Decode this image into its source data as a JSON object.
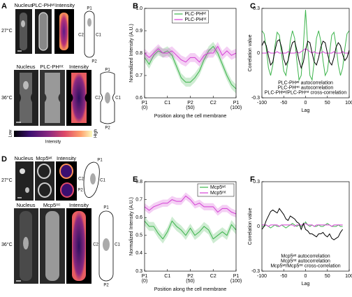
{
  "panel_a": {
    "label": "A",
    "rows": [
      {
        "temperature": "27°C",
        "headers": [
          "Nucleus",
          "PLC-PHʷᵗ",
          "Intensity"
        ],
        "diagram": [
          "P1",
          "C2",
          "C1",
          "P2"
        ]
      },
      {
        "temperature": "36°C",
        "headers": [
          "Nucleus",
          "PLC-PHᵐᵗ",
          "Intensity"
        ],
        "diagram": [
          "P1",
          "C2",
          "C1",
          "P2"
        ]
      }
    ],
    "colorbar": {
      "low": "Low",
      "high": "High",
      "label": "Intensity"
    }
  },
  "panel_d": {
    "label": "D",
    "rows": [
      {
        "temperature": "27°C",
        "headers": [
          "Nucleus",
          "Mcp5ʷᵗ",
          "Intensity"
        ],
        "diagram": [
          "P1",
          "C2",
          "C1",
          "P2"
        ]
      },
      {
        "temperature": "36°C",
        "headers": [
          "Nucleus",
          "Mcp5ᵐᵗ",
          "Intensity"
        ],
        "diagram": [
          "P1",
          "C2",
          "C1",
          "P2"
        ]
      }
    ]
  },
  "chart_data": [
    {
      "type": "line",
      "panel": "B",
      "xlabel": "Position along the cell membrane",
      "ylabel": "Normalized Intensity (A.U.)",
      "x": [
        0,
        5,
        10,
        15,
        20,
        25,
        30,
        35,
        40,
        45,
        50,
        55,
        60,
        65,
        70,
        75,
        80,
        85,
        90,
        95,
        100
      ],
      "xlim": [
        0,
        100
      ],
      "xticks": [
        {
          "value": 0,
          "label": "P1"
        },
        {
          "value": 25,
          "label": "C1"
        },
        {
          "value": 50,
          "label": "P2"
        },
        {
          "value": 75,
          "label": "C2"
        },
        {
          "value": 100,
          "label": "P1"
        }
      ],
      "xtick_notes": [
        "(0)",
        null,
        "(50)",
        null,
        "(100)"
      ],
      "ylim": [
        0.6,
        1.0
      ],
      "yticks": [
        0.6,
        0.7,
        0.8,
        0.9,
        {
          "value": 1.0,
          "label": "1.0"
        }
      ],
      "legend": "upper center",
      "legend_swatches": true,
      "series": [
        {
          "name": "PLC-PHʷᵗ",
          "color": "#3cb44b",
          "values": [
            0.78,
            0.75,
            0.79,
            0.81,
            0.8,
            0.81,
            0.79,
            0.74,
            0.69,
            0.67,
            0.67,
            0.69,
            0.72,
            0.77,
            0.81,
            0.83,
            0.8,
            0.75,
            0.7,
            0.66,
            0.64
          ],
          "errors": [
            0.02,
            0.02,
            0.02,
            0.02,
            0.02,
            0.02,
            0.02,
            0.02,
            0.02,
            0.02,
            0.02,
            0.02,
            0.02,
            0.02,
            0.02,
            0.02,
            0.02,
            0.02,
            0.02,
            0.02,
            0.02
          ]
        },
        {
          "name": "PLC-PHᵐᵗ",
          "color": "#d43fd4",
          "values": [
            0.8,
            0.78,
            0.8,
            0.82,
            0.8,
            0.8,
            0.81,
            0.79,
            0.77,
            0.76,
            0.78,
            0.78,
            0.76,
            0.79,
            0.8,
            0.8,
            0.83,
            0.79,
            0.81,
            0.79,
            0.8
          ],
          "errors": [
            0.02,
            0.02,
            0.02,
            0.02,
            0.02,
            0.02,
            0.02,
            0.02,
            0.02,
            0.02,
            0.02,
            0.02,
            0.02,
            0.02,
            0.02,
            0.02,
            0.02,
            0.02,
            0.02,
            0.02,
            0.02
          ]
        }
      ]
    },
    {
      "type": "line",
      "panel": "C",
      "xlabel": "Lag",
      "ylabel": "Correlation value",
      "x": [
        -100,
        -95,
        -90,
        -85,
        -80,
        -75,
        -70,
        -65,
        -60,
        -55,
        -50,
        -45,
        -40,
        -35,
        -30,
        -25,
        -20,
        -15,
        -10,
        -5,
        0,
        5,
        10,
        15,
        20,
        25,
        30,
        35,
        40,
        45,
        50,
        55,
        60,
        65,
        70,
        75,
        80,
        85,
        90,
        95,
        100
      ],
      "xlim": [
        -100,
        100
      ],
      "xticks": [
        -100,
        -50,
        0,
        50,
        100
      ],
      "ylim": [
        -0.3,
        0.3
      ],
      "yticks": [
        -0.3,
        0,
        0.3
      ],
      "legend": "lower center",
      "legend_swatches": false,
      "series": [
        {
          "name": "PLC-PHʷᵗ autocorrelation",
          "color": "#3cb44b",
          "values": [
            0.15,
            0.13,
            0.03,
            -0.1,
            -0.15,
            -0.08,
            0.05,
            0.14,
            0.12,
            0,
            -0.12,
            -0.15,
            -0.05,
            0.08,
            0.15,
            0.1,
            -0.05,
            -0.18,
            -0.15,
            0.05,
            0.29,
            0.05,
            -0.15,
            -0.18,
            -0.05,
            0.1,
            0.15,
            0.08,
            -0.05,
            -0.15,
            -0.12,
            0,
            0.12,
            0.14,
            0.05,
            -0.08,
            -0.15,
            -0.1,
            0.03,
            0.13,
            0.15
          ]
        },
        {
          "name": "PLC-PHᵐᵗ autocorrelation",
          "color": "#d43fd4",
          "values": [
            0,
            0,
            0,
            0.01,
            0,
            0,
            0,
            0.01,
            0,
            0,
            0,
            0,
            0.01,
            0,
            0,
            0,
            0.01,
            0,
            0.01,
            0.02,
            0.03,
            0.02,
            0.01,
            0,
            0.01,
            0,
            0,
            0,
            0.01,
            0,
            0,
            0,
            0,
            0.01,
            0,
            0,
            0,
            0.01,
            0,
            0,
            0
          ]
        },
        {
          "name": "PLC-PHʷᵗ/PLC-PHᵐᵗ cross-correlation",
          "color": "#000000",
          "values": [
            0.05,
            0.08,
            0.05,
            -0.02,
            -0.08,
            -0.06,
            0.02,
            0.08,
            0.09,
            0.04,
            -0.04,
            -0.08,
            -0.05,
            0.02,
            0.07,
            0.08,
            0.02,
            -0.05,
            -0.1,
            -0.06,
            0.02,
            0.08,
            0.07,
            0,
            -0.06,
            -0.08,
            -0.03,
            0.04,
            0.08,
            0.07,
            0,
            -0.06,
            -0.08,
            -0.03,
            0.04,
            0.07,
            0.05,
            -0.01,
            -0.05,
            -0.03,
            0.02
          ]
        }
      ]
    },
    {
      "type": "line",
      "panel": "E",
      "xlabel": "Position along the cell membrane",
      "ylabel": "Normalized Intensity (A.U.)",
      "x": [
        0,
        5,
        10,
        15,
        20,
        25,
        30,
        35,
        40,
        45,
        50,
        55,
        60,
        65,
        70,
        75,
        80,
        85,
        90,
        95,
        100
      ],
      "xlim": [
        0,
        100
      ],
      "xticks": [
        {
          "value": 0,
          "label": "P1"
        },
        {
          "value": 25,
          "label": "C1"
        },
        {
          "value": 50,
          "label": "P2"
        },
        {
          "value": 75,
          "label": "C2"
        },
        {
          "value": 100,
          "label": "P1"
        }
      ],
      "xtick_notes": [
        "(0)",
        null,
        "(50)",
        null,
        "(100)"
      ],
      "ylim": [
        0.3,
        0.8
      ],
      "yticks": [
        0.3,
        0.4,
        0.5,
        0.6,
        0.7,
        0.8
      ],
      "legend": "upper right",
      "legend_swatches": true,
      "series": [
        {
          "name": "Mcp5ʷᵗ",
          "color": "#3cb44b",
          "values": [
            0.58,
            0.55,
            0.55,
            0.51,
            0.48,
            0.52,
            0.58,
            0.55,
            0.53,
            0.5,
            0.54,
            0.5,
            0.52,
            0.55,
            0.53,
            0.48,
            0.5,
            0.52,
            0.5,
            0.56,
            0.53
          ],
          "errors": [
            0.025,
            0.025,
            0.025,
            0.025,
            0.025,
            0.025,
            0.025,
            0.025,
            0.025,
            0.025,
            0.025,
            0.025,
            0.025,
            0.025,
            0.025,
            0.025,
            0.025,
            0.025,
            0.025,
            0.025,
            0.025
          ]
        },
        {
          "name": "Mcp5ᵐᵗ",
          "color": "#d43fd4",
          "values": [
            0.66,
            0.64,
            0.66,
            0.67,
            0.68,
            0.68,
            0.7,
            0.69,
            0.69,
            0.72,
            0.7,
            0.67,
            0.68,
            0.66,
            0.66,
            0.66,
            0.63,
            0.65,
            0.65,
            0.63,
            0.62
          ],
          "errors": [
            0.02,
            0.02,
            0.02,
            0.02,
            0.02,
            0.02,
            0.02,
            0.02,
            0.02,
            0.02,
            0.02,
            0.02,
            0.02,
            0.02,
            0.02,
            0.02,
            0.02,
            0.02,
            0.02,
            0.02,
            0.02
          ]
        }
      ]
    },
    {
      "type": "line",
      "panel": "F",
      "xlabel": "Lag",
      "ylabel": "Correlation value",
      "x": [
        -100,
        -95,
        -90,
        -85,
        -80,
        -75,
        -70,
        -65,
        -60,
        -55,
        -50,
        -45,
        -40,
        -35,
        -30,
        -25,
        -20,
        -15,
        -10,
        -5,
        0,
        5,
        10,
        15,
        20,
        25,
        30,
        35,
        40,
        45,
        50,
        55,
        60,
        65,
        70,
        75,
        80,
        85,
        90,
        95,
        100
      ],
      "xlim": [
        -100,
        100
      ],
      "xticks": [
        -100,
        -50,
        0,
        50,
        100
      ],
      "ylim": [
        -0.3,
        0.3
      ],
      "yticks": [
        -0.3,
        0,
        0.3
      ],
      "legend": "lower center",
      "legend_swatches": false,
      "series": [
        {
          "name": "Mcp5ʷᵗ autocorrelation",
          "color": "#3cb44b",
          "values": [
            0,
            0,
            0.01,
            0,
            -0.01,
            0,
            0.01,
            0,
            0,
            0.01,
            0,
            -0.01,
            0,
            0.01,
            0.02,
            0.01,
            0,
            0.01,
            0,
            0.01,
            0.03,
            0.01,
            0,
            0.01,
            0,
            0,
            0.01,
            0,
            0,
            0.01,
            0.02,
            0.01,
            0,
            0,
            0,
            0.01,
            0,
            0,
            null,
            null,
            null
          ]
        },
        {
          "name": "Mcp5ᵐᵗ autocorrelation",
          "color": "#d43fd4",
          "values": [
            0.01,
            0.01,
            0.01,
            0,
            0.01,
            0.01,
            0.01,
            0.01,
            0,
            0.01,
            0.01,
            0.01,
            0.01,
            0.01,
            0.01,
            0,
            0.01,
            0.01,
            0.01,
            0.01,
            0.02,
            0.01,
            0.01,
            0.01,
            0,
            0.01,
            0.01,
            0.01,
            0.01,
            0.01,
            0.01,
            0.01,
            0,
            0.01,
            0.01,
            0.01,
            0.01,
            0.01,
            null,
            null,
            null
          ]
        },
        {
          "name": "Mcp5ʷᵗ/Mcp5ᵐᵗ cross-correlation",
          "color": "#000000",
          "values": [
            -0.02,
            0,
            0.04,
            0.07,
            0.1,
            0.11,
            0.1,
            0.09,
            0.12,
            0.1,
            0.08,
            0.05,
            0.04,
            0.07,
            0.06,
            0.05,
            0.03,
            0.02,
            -0.02,
            0.02,
            -0.02,
            -0.03,
            -0.05,
            -0.05,
            -0.06,
            -0.07,
            -0.05,
            -0.05,
            -0.04,
            -0.06,
            -0.07,
            -0.05,
            -0.08,
            -0.09,
            -0.08,
            -0.07,
            -0.04,
            -0.02,
            null,
            null,
            null
          ]
        }
      ]
    }
  ]
}
